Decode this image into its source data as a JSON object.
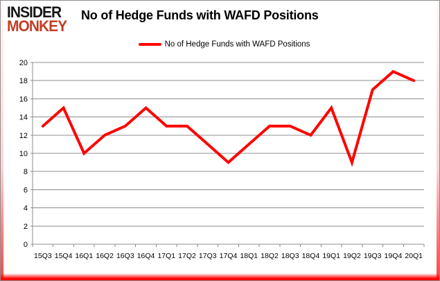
{
  "logo": {
    "line1": "INSIDER",
    "line2": "MONKEY"
  },
  "header": {
    "title": "No of Hedge Funds with WAFD Positions"
  },
  "legend": {
    "label": "No of Hedge Funds with WAFD Positions",
    "line_color": "#ff0000"
  },
  "colors": {
    "series_line": "#ff0000",
    "grid": "#8c8c8c",
    "axis": "#8c8c8c",
    "axis_text": "#000000",
    "frame": "#8e8e8e",
    "logo_black": "#161616",
    "logo_red": "#c23e27"
  },
  "chart_data": {
    "type": "line",
    "title": "No of Hedge Funds with WAFD Positions",
    "categories": [
      "15Q3",
      "15Q4",
      "16Q1",
      "16Q2",
      "16Q3",
      "16Q4",
      "17Q1",
      "17Q2",
      "17Q3",
      "17Q4",
      "18Q1",
      "18Q2",
      "18Q3",
      "18Q4",
      "19Q1",
      "19Q2",
      "19Q3",
      "19Q4",
      "20Q1"
    ],
    "series": [
      {
        "name": "No of Hedge Funds with WAFD Positions",
        "color": "#ff0000",
        "values": [
          13,
          15,
          10,
          12,
          13,
          15,
          13,
          13,
          11,
          9,
          11,
          13,
          13,
          12,
          15,
          9,
          17,
          19,
          18
        ]
      }
    ],
    "xlabel": "",
    "ylabel": "",
    "ylim": [
      0,
      20
    ],
    "ytick_step": 2,
    "grid": true,
    "legend_position": "top"
  }
}
